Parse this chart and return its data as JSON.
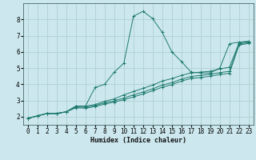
{
  "xlabel": "Humidex (Indice chaleur)",
  "bg_color": "#cce8ee",
  "grid_color": "#aacccc",
  "line_color": "#1e7a6e",
  "xlim": [
    -0.5,
    23.5
  ],
  "ylim": [
    1.5,
    9.0
  ],
  "yticks": [
    2,
    3,
    4,
    5,
    6,
    7,
    8
  ],
  "xticks": [
    0,
    1,
    2,
    3,
    4,
    5,
    6,
    7,
    8,
    9,
    10,
    11,
    12,
    13,
    14,
    15,
    16,
    17,
    18,
    19,
    20,
    21,
    22,
    23
  ],
  "series": [
    {
      "x": [
        0,
        1,
        2,
        3,
        4,
        5,
        6,
        7,
        8,
        9,
        10,
        11,
        12,
        13,
        14,
        15,
        16,
        17,
        18,
        19,
        20,
        21,
        22,
        23
      ],
      "y": [
        1.9,
        2.05,
        2.2,
        2.2,
        2.3,
        2.65,
        2.65,
        3.8,
        4.0,
        4.75,
        5.3,
        8.2,
        8.5,
        8.05,
        7.2,
        6.0,
        5.4,
        4.75,
        4.7,
        4.7,
        5.0,
        6.5,
        6.6,
        6.65
      ]
    },
    {
      "x": [
        0,
        1,
        2,
        3,
        4,
        5,
        6,
        7,
        8,
        9,
        10,
        11,
        12,
        13,
        14,
        15,
        16,
        17,
        18,
        19,
        20,
        21,
        22,
        23
      ],
      "y": [
        1.9,
        2.05,
        2.2,
        2.2,
        2.3,
        2.65,
        2.65,
        2.75,
        2.95,
        3.1,
        3.35,
        3.55,
        3.75,
        3.95,
        4.2,
        4.35,
        4.55,
        4.7,
        4.75,
        4.8,
        4.95,
        5.05,
        6.55,
        6.65
      ]
    },
    {
      "x": [
        0,
        1,
        2,
        3,
        4,
        5,
        6,
        7,
        8,
        9,
        10,
        11,
        12,
        13,
        14,
        15,
        16,
        17,
        18,
        19,
        20,
        21,
        22,
        23
      ],
      "y": [
        1.9,
        2.05,
        2.2,
        2.2,
        2.3,
        2.6,
        2.58,
        2.7,
        2.85,
        2.98,
        3.15,
        3.35,
        3.52,
        3.72,
        3.95,
        4.1,
        4.32,
        4.48,
        4.55,
        4.62,
        4.72,
        4.8,
        6.48,
        6.58
      ]
    },
    {
      "x": [
        0,
        1,
        2,
        3,
        4,
        5,
        6,
        7,
        8,
        9,
        10,
        11,
        12,
        13,
        14,
        15,
        16,
        17,
        18,
        19,
        20,
        21,
        22,
        23
      ],
      "y": [
        1.9,
        2.05,
        2.2,
        2.2,
        2.3,
        2.55,
        2.52,
        2.62,
        2.78,
        2.9,
        3.05,
        3.22,
        3.4,
        3.6,
        3.82,
        3.98,
        4.2,
        4.36,
        4.42,
        4.5,
        4.6,
        4.68,
        6.42,
        6.52
      ]
    }
  ]
}
